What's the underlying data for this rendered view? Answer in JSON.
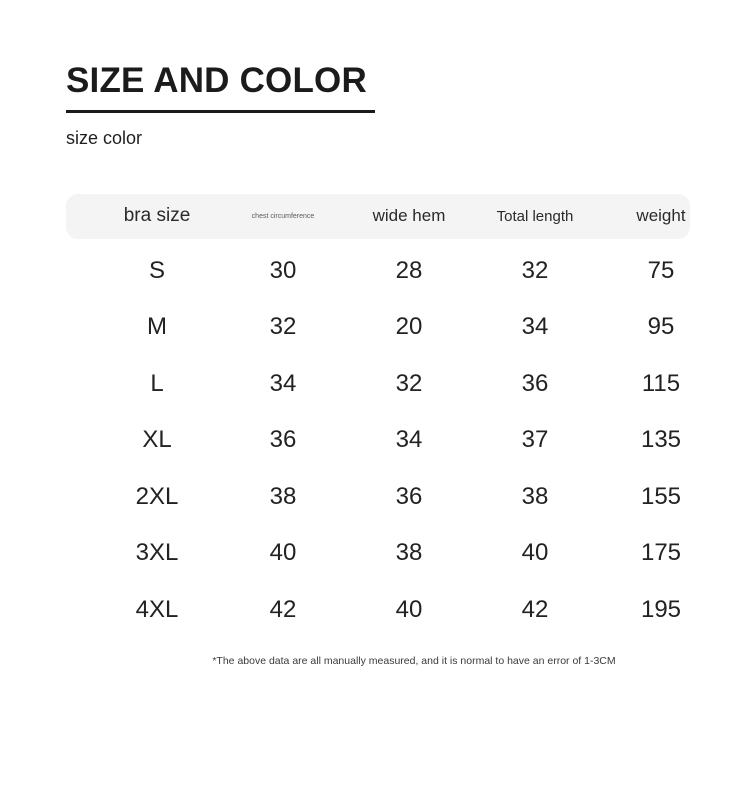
{
  "page": {
    "title": "SIZE AND COLOR",
    "subtitle": "size color",
    "footnote": "*The above data are all manually measured, and it is normal to have an error of 1-3CM"
  },
  "colors": {
    "background": "#ffffff",
    "text": "#222222",
    "header_band": "#f4f4f4",
    "title": "#1b1b1b"
  },
  "size_table": {
    "columns": [
      "bra size",
      "chest circumference",
      "wide hem",
      "Total length",
      "weight"
    ],
    "rows": [
      [
        "S",
        "30",
        "28",
        "32",
        "75"
      ],
      [
        "M",
        "32",
        "20",
        "34",
        "95"
      ],
      [
        "L",
        "34",
        "32",
        "36",
        "115"
      ],
      [
        "XL",
        "36",
        "34",
        "37",
        "135"
      ],
      [
        "2XL",
        "38",
        "36",
        "38",
        "155"
      ],
      [
        "3XL",
        "40",
        "38",
        "40",
        "175"
      ],
      [
        "4XL",
        "42",
        "40",
        "42",
        "195"
      ]
    ]
  }
}
